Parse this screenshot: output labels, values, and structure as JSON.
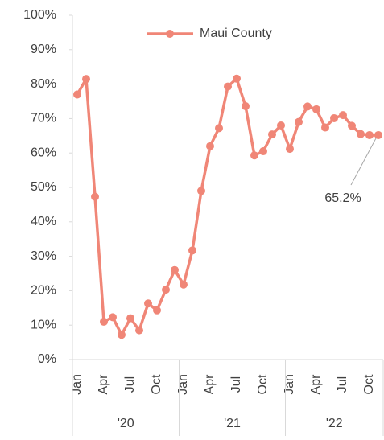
{
  "chart_data": {
    "type": "line",
    "categories": [
      "Jan",
      null,
      null,
      "Apr",
      null,
      null,
      "Jul",
      null,
      null,
      "Oct",
      null,
      null,
      "Jan",
      null,
      null,
      "Apr",
      null,
      null,
      "Jul",
      null,
      null,
      "Oct",
      null,
      null,
      "Jan",
      null,
      null,
      "Apr",
      null,
      null,
      "Jul",
      null,
      null,
      "Oct",
      null
    ],
    "groups": [
      "'20",
      "'21",
      "'22"
    ],
    "series": [
      {
        "name": "Maui County",
        "color": "#f08677",
        "values": [
          77,
          81.5,
          47.3,
          11,
          12.3,
          7.2,
          12,
          8.5,
          16.3,
          14.3,
          20.3,
          26,
          21.8,
          31.7,
          49,
          62,
          67.2,
          79.3,
          81.6,
          73.6,
          59.3,
          60.5,
          65.4,
          68,
          61.2,
          69,
          73.5,
          72.7,
          67.4,
          70.1,
          71,
          67.9,
          65.5,
          65.2,
          65.2
        ],
        "value_labels": [
          null,
          null,
          null,
          null,
          null,
          null,
          null,
          null,
          null,
          null,
          null,
          null,
          null,
          null,
          null,
          null,
          null,
          null,
          null,
          null,
          null,
          null,
          null,
          null,
          null,
          null,
          null,
          null,
          null,
          null,
          null,
          null,
          null,
          null,
          "65.2%"
        ]
      }
    ],
    "ylim": [
      0,
      100
    ],
    "yticks": [
      {
        "value": 0,
        "label": "0%"
      },
      {
        "value": 10,
        "label": "10%"
      },
      {
        "value": 20,
        "label": "20%"
      },
      {
        "value": 30,
        "label": "30%"
      },
      {
        "value": 40,
        "label": "40%"
      },
      {
        "value": 50,
        "label": "50%"
      },
      {
        "value": 60,
        "label": "60%"
      },
      {
        "value": 70,
        "label": "70%"
      },
      {
        "value": 80,
        "label": "80%"
      },
      {
        "value": 90,
        "label": "90%"
      },
      {
        "value": 100,
        "label": "100%"
      }
    ],
    "grid": false,
    "legend": "top"
  }
}
